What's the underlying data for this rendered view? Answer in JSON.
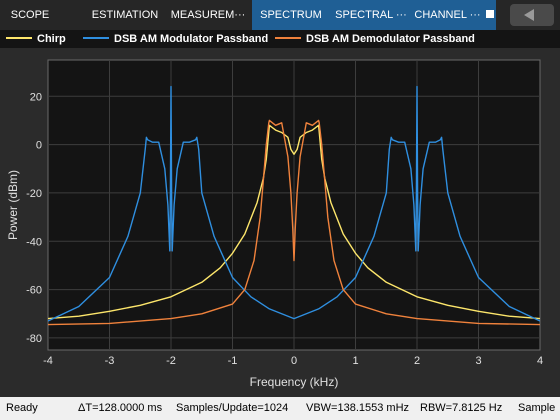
{
  "toolstrip": {
    "tabs": [
      {
        "label": "SCOPE",
        "active": false
      },
      {
        "label": "ESTIMATION",
        "active": false
      },
      {
        "label": "MEASUREM···",
        "active": false
      },
      {
        "label": "SPECTRUM",
        "active": true
      },
      {
        "label": "SPECTRAL ···",
        "active": true
      },
      {
        "label": "CHANNEL ···",
        "active": true
      }
    ]
  },
  "legend": [
    {
      "name": "Chirp",
      "color": "#fde66b"
    },
    {
      "name": "DSB AM Modulator Passband",
      "color": "#2f8fe0"
    },
    {
      "name": "DSB AM Demodulator Passband",
      "color": "#f0823c"
    }
  ],
  "chart_data": {
    "type": "line",
    "xlabel": "Frequency (kHz)",
    "ylabel": "Power (dBm)",
    "xlim": [
      -4,
      4
    ],
    "ylim": [
      -85,
      35
    ],
    "xticks": [
      "-4",
      "-3",
      "-2",
      "-1",
      "0",
      "1",
      "2",
      "3",
      "4"
    ],
    "yticks": [
      "-80",
      "-60",
      "-40",
      "-20",
      "0",
      "20"
    ],
    "grid": true,
    "series": [
      {
        "name": "Chirp",
        "color": "#fde66b",
        "x": [
          -4,
          -3.5,
          -3,
          -2.5,
          -2,
          -1.5,
          -1.2,
          -1,
          -0.8,
          -0.6,
          -0.5,
          -0.45,
          -0.4,
          -0.3,
          -0.2,
          -0.1,
          -0.05,
          0,
          0.05,
          0.1,
          0.2,
          0.3,
          0.4,
          0.45,
          0.5,
          0.6,
          0.8,
          1,
          1.2,
          1.5,
          2,
          2.5,
          3,
          3.5,
          4
        ],
        "y": [
          -72,
          -71,
          -69,
          -66.5,
          -63,
          -57,
          -51,
          -45,
          -37,
          -24,
          -14,
          -6,
          8,
          6,
          5,
          3,
          -2,
          -4,
          -2,
          3,
          5,
          6,
          8,
          -6,
          -14,
          -24,
          -37,
          -45,
          -51,
          -57,
          -63,
          -66.5,
          -69,
          -71,
          -72
        ]
      },
      {
        "name": "DSB AM Modulator Passband",
        "color": "#2f8fe0",
        "x": [
          -4,
          -3.5,
          -3,
          -2.7,
          -2.5,
          -2.42,
          -2.4,
          -2.38,
          -2.3,
          -2.2,
          -2.1,
          -2.05,
          -2.02,
          -2.01,
          -2,
          -1.99,
          -1.98,
          -1.95,
          -1.9,
          -1.8,
          -1.7,
          -1.6,
          -1.58,
          -1.55,
          -1.5,
          -1.3,
          -1,
          -0.7,
          -0.4,
          0,
          0.4,
          0.7,
          1,
          1.3,
          1.5,
          1.55,
          1.58,
          1.6,
          1.7,
          1.8,
          1.9,
          1.95,
          1.98,
          1.99,
          2,
          2.01,
          2.02,
          2.05,
          2.1,
          2.2,
          2.3,
          2.38,
          2.4,
          2.42,
          2.5,
          2.7,
          3,
          3.5,
          4
        ],
        "y": [
          -73,
          -67,
          -55,
          -38,
          -20,
          -2,
          3,
          2,
          1,
          1,
          -10,
          -25,
          -44,
          -20,
          24,
          -20,
          -44,
          -25,
          -10,
          1,
          1,
          2,
          3,
          -2,
          -20,
          -38,
          -55,
          -63,
          -68,
          -72,
          -68,
          -63,
          -55,
          -38,
          -20,
          -2,
          3,
          2,
          1,
          1,
          -10,
          -25,
          -44,
          -20,
          24,
          -20,
          -44,
          -25,
          -10,
          1,
          1,
          2,
          3,
          -2,
          -20,
          -38,
          -55,
          -67,
          -73
        ]
      },
      {
        "name": "DSB AM Demodulator Passband",
        "color": "#f0823c",
        "x": [
          -4,
          -3,
          -2,
          -1.5,
          -1,
          -0.8,
          -0.65,
          -0.55,
          -0.5,
          -0.45,
          -0.41,
          -0.4,
          -0.3,
          -0.2,
          -0.1,
          -0.05,
          -0.02,
          0,
          0.02,
          0.05,
          0.1,
          0.2,
          0.3,
          0.4,
          0.41,
          0.45,
          0.5,
          0.55,
          0.65,
          0.8,
          1,
          1.5,
          2,
          3,
          4
        ],
        "y": [
          -74.5,
          -74,
          -72,
          -70,
          -66,
          -60,
          -48,
          -30,
          -15,
          0,
          9,
          10,
          8,
          9,
          -5,
          -20,
          -35,
          -48,
          -35,
          -20,
          -5,
          9,
          8,
          10,
          9,
          0,
          -15,
          -30,
          -48,
          -60,
          -66,
          -70,
          -72,
          -74,
          -74.5
        ]
      }
    ]
  },
  "statusbar": {
    "ready": "Ready",
    "delta_t": "ΔT=128.0000 ms",
    "samples_update": "Samples/Update=1024",
    "vbw": "VBW=138.1553 mHz",
    "rbw": "RBW=7.8125 Hz",
    "sample": "Sample"
  }
}
